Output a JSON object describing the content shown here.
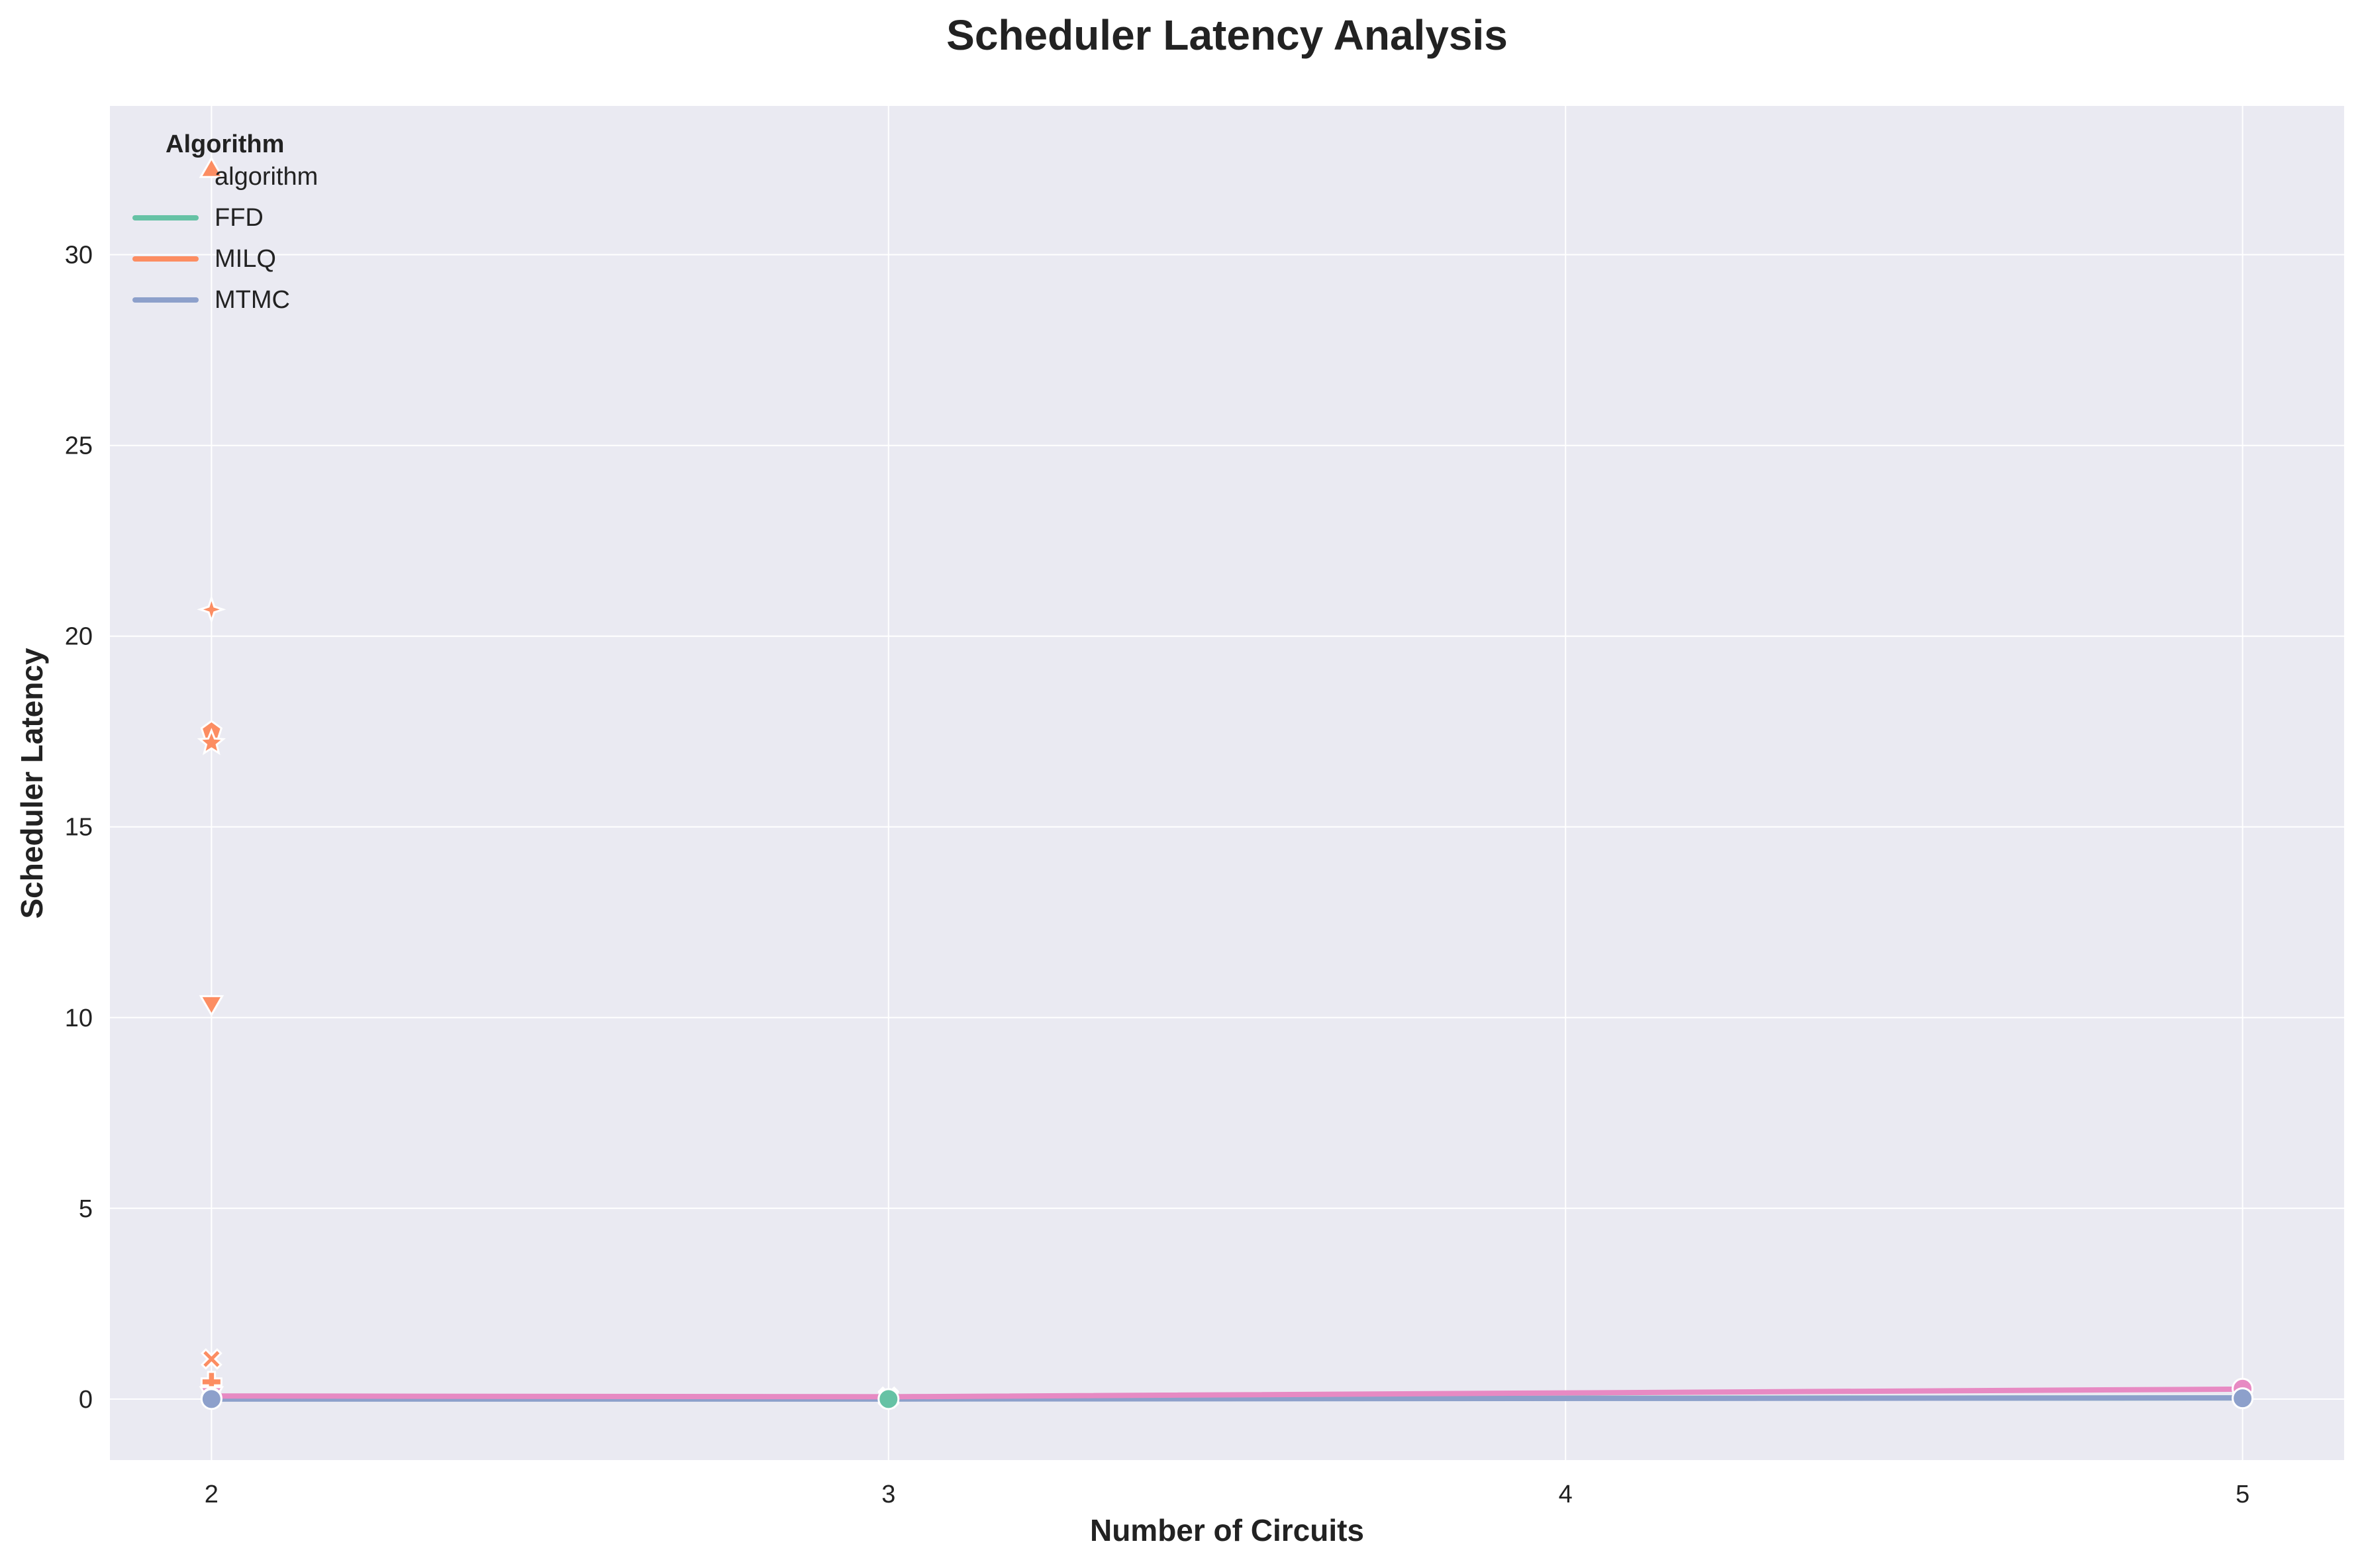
{
  "chart_data": {
    "type": "line",
    "title": "Scheduler Latency Analysis",
    "xlabel": "Number of Circuits",
    "ylabel": "Scheduler Latency",
    "xlim": [
      1.85,
      5.15
    ],
    "ylim": [
      -1.6,
      33.9
    ],
    "x_ticks": [
      2,
      3,
      4,
      5
    ],
    "y_ticks": [
      0,
      5,
      10,
      15,
      20,
      25,
      30
    ],
    "grid": true,
    "legend": {
      "placement": "top-left",
      "title": "Algorithm",
      "entries": [
        {
          "label": "algorithm",
          "color": null
        },
        {
          "label": "FFD",
          "color": "#66c2a5"
        },
        {
          "label": "MILQ",
          "color": "#fc8d62"
        },
        {
          "label": "MTMC",
          "color": "#8da0cb"
        }
      ]
    },
    "background_color": "#eaeaf2",
    "lines": [
      {
        "color": "#66c2a5",
        "x": [
          2,
          3,
          5
        ],
        "y": [
          0.02,
          0.01,
          0.03
        ]
      },
      {
        "color": "#8da0cb",
        "x": [
          2,
          3,
          5
        ],
        "y": [
          0.0,
          0.0,
          0.03
        ]
      },
      {
        "color": "#e78ac3",
        "x": [
          2,
          3,
          5
        ],
        "y": [
          0.08,
          0.06,
          0.26
        ]
      }
    ],
    "points": [
      {
        "x": 2,
        "y": 32.2,
        "color": "#fc8d62",
        "marker": "triangle-up"
      },
      {
        "x": 2,
        "y": 20.7,
        "color": "#fc8d62",
        "marker": "star4"
      },
      {
        "x": 2,
        "y": 17.5,
        "color": "#fc8d62",
        "marker": "pentagon"
      },
      {
        "x": 2,
        "y": 17.2,
        "color": "#fc8d62",
        "marker": "star"
      },
      {
        "x": 2,
        "y": 10.4,
        "color": "#fc8d62",
        "marker": "triangle-down"
      },
      {
        "x": 2,
        "y": 1.05,
        "color": "#fc8d62",
        "marker": "x"
      },
      {
        "x": 2,
        "y": 0.45,
        "color": "#fc8d62",
        "marker": "plus"
      },
      {
        "x": 2,
        "y": 0.15,
        "color": "#e78ac3",
        "marker": "triangle-down"
      },
      {
        "x": 2,
        "y": 0.02,
        "color": "#66c2a5",
        "marker": "circle"
      },
      {
        "x": 2,
        "y": 0.0,
        "color": "#8da0cb",
        "marker": "circle"
      },
      {
        "x": 3,
        "y": 0.05,
        "color": "#8da0cb",
        "marker": "x"
      },
      {
        "x": 3,
        "y": 0.03,
        "color": "#e78ac3",
        "marker": "x"
      },
      {
        "x": 3,
        "y": 0.0,
        "color": "#66c2a5",
        "marker": "circle"
      },
      {
        "x": 5,
        "y": 0.27,
        "color": "#e78ac3",
        "marker": "circle"
      },
      {
        "x": 5,
        "y": 0.02,
        "color": "#8da0cb",
        "marker": "circle"
      }
    ]
  }
}
